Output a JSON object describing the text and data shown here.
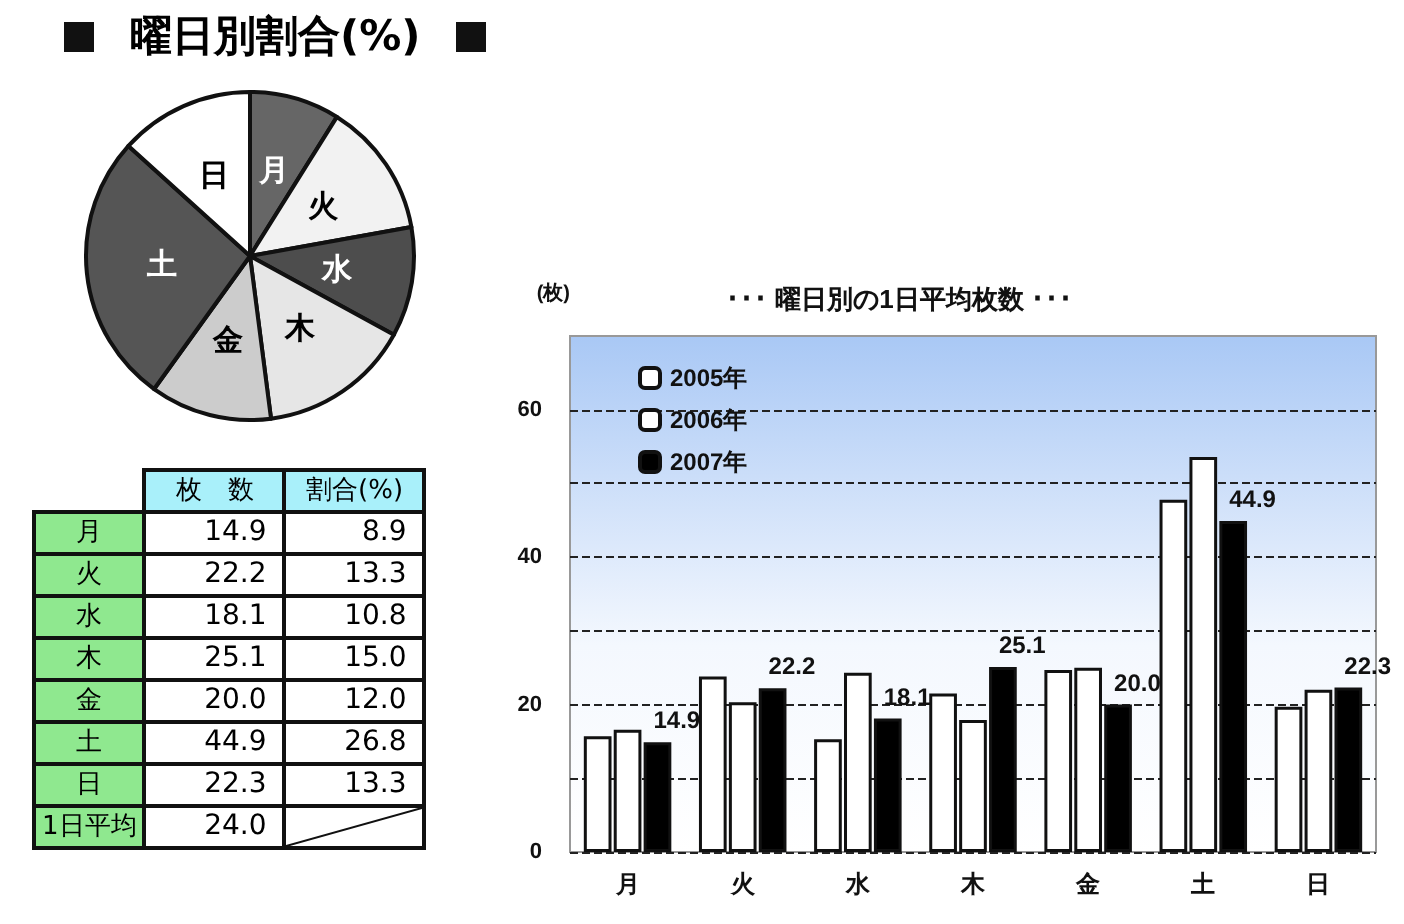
{
  "chart_data": [
    {
      "type": "pie",
      "title": "曜日別割合(%)",
      "categories": [
        "月",
        "火",
        "水",
        "木",
        "金",
        "土",
        "日"
      ],
      "values": [
        8.9,
        13.3,
        10.8,
        15.0,
        12.0,
        26.8,
        13.3
      ],
      "colors": [
        "#666666",
        "#f2f2f2",
        "#4d4d4d",
        "#e6e6e6",
        "#cccccc",
        "#555555",
        "#ffffff"
      ]
    },
    {
      "type": "other",
      "categories": [
        "月",
        "火",
        "水",
        "木",
        "金",
        "土",
        "日",
        "1日平均"
      ],
      "series": [
        {
          "name": "枚　数",
          "values": [
            14.9,
            22.2,
            18.1,
            25.1,
            20.0,
            44.9,
            22.3,
            24.0
          ],
          "value_labels": [
            "14.9",
            "22.2",
            "18.1",
            "25.1",
            "20.0",
            "44.9",
            "22.3",
            "24.0"
          ]
        },
        {
          "name": "割合(%)",
          "values": [
            8.9,
            13.3,
            10.8,
            15.0,
            12.0,
            26.8,
            13.3,
            null
          ],
          "value_labels": [
            "8.9",
            "13.3",
            "10.8",
            "15.0",
            "12.0",
            "26.8",
            "13.3",
            null
          ]
        }
      ]
    },
    {
      "type": "bar",
      "title": "･･･ 曜日別の1日平均枚数 ･･･",
      "ylabel": "(枚)",
      "categories": [
        "月",
        "火",
        "水",
        "木",
        "金",
        "土",
        "日"
      ],
      "series": [
        {
          "name": "2005年",
          "color": "#ffffff",
          "values": [
            15.7,
            23.8,
            15.3,
            21.5,
            24.7,
            47.8,
            19.7
          ]
        },
        {
          "name": "2006年",
          "color": "#ffffff",
          "values": [
            16.6,
            20.3,
            24.3,
            17.9,
            25.0,
            53.6,
            22.0
          ]
        },
        {
          "name": "2007年",
          "color": "#000000",
          "values": [
            14.9,
            22.2,
            18.1,
            25.1,
            20.0,
            44.9,
            22.3
          ],
          "value_labels": [
            "14.9",
            "22.2",
            "18.1",
            "25.1",
            "20.0",
            "44.9",
            "22.3"
          ]
        }
      ],
      "ylim": [
        0,
        70
      ],
      "yticks": [
        0,
        {
          "value": 10,
          "label": null
        },
        20,
        {
          "value": 30,
          "label": null
        },
        40,
        {
          "value": 50,
          "label": null
        },
        60
      ],
      "grid": "y",
      "legend": "top left"
    }
  ]
}
